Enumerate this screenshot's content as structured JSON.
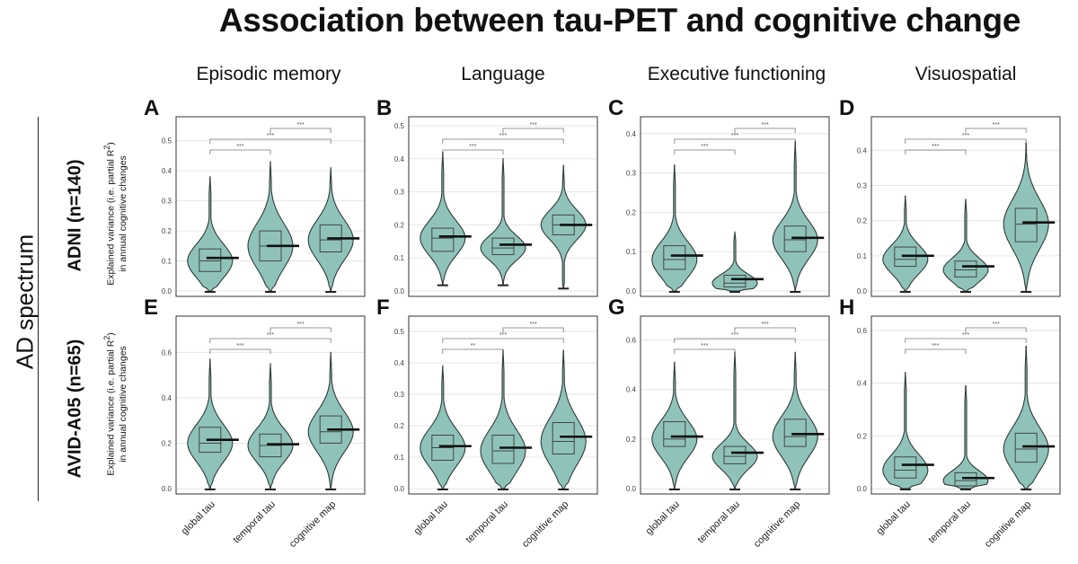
{
  "title": "Association between tau-PET and cognitive change",
  "row_group_label": "AD spectrum",
  "domains": [
    "Episodic memory",
    "Language",
    "Executive functioning",
    "Visuospatial"
  ],
  "cohorts": [
    "ADNI (n=140)",
    "AVID-A05 (n=65)"
  ],
  "ylabel": {
    "line1": "Explained variance (i.e. partial R",
    "sup": "2",
    "line1_end": ")",
    "line2": "in annual cognitive changes"
  },
  "colors": {
    "violin_fill": "#8fc3ba",
    "violin_stroke": "#2f3b38",
    "box_stroke": "#444444",
    "median": "#111111",
    "grid": "#e6e6e6"
  },
  "chart_data": [
    {
      "panel": "A",
      "type": "violin",
      "row": "ADNI (n=140)",
      "column": "Episodic memory",
      "categories": [
        "global tau",
        "temporal tau",
        "cognitive map"
      ],
      "ylim": [
        0,
        0.55
      ],
      "yticks": [
        0,
        0.1,
        0.2,
        0.3,
        0.4,
        0.5
      ],
      "ytick_labels": [
        "0.0",
        "0.1",
        "0.2",
        "0.3",
        "0.4",
        "0.5"
      ],
      "medians": [
        0.1,
        0.15,
        0.17
      ],
      "means": [
        0.11,
        0.15,
        0.175
      ],
      "q1": [
        0.065,
        0.1,
        0.13
      ],
      "q3": [
        0.14,
        0.2,
        0.22
      ],
      "min": [
        0.0,
        0.0,
        0.0
      ],
      "max": [
        0.38,
        0.43,
        0.41
      ],
      "comparisons": [
        {
          "from": "global tau",
          "to": "temporal tau",
          "label": "***"
        },
        {
          "from": "global tau",
          "to": "cognitive map",
          "label": "***"
        },
        {
          "from": "temporal tau",
          "to": "cognitive map",
          "label": "***"
        }
      ]
    },
    {
      "panel": "B",
      "type": "violin",
      "row": "ADNI (n=140)",
      "column": "Language",
      "categories": [
        "global tau",
        "temporal tau",
        "cognitive map"
      ],
      "ylim": [
        0,
        0.5
      ],
      "yticks": [
        0,
        0.1,
        0.2,
        0.3,
        0.4,
        0.5
      ],
      "ytick_labels": [
        "0.0",
        "0.1",
        "0.2",
        "0.3",
        "0.4",
        "0.5"
      ],
      "medians": [
        0.16,
        0.13,
        0.2
      ],
      "means": [
        0.165,
        0.14,
        0.2
      ],
      "q1": [
        0.12,
        0.11,
        0.17
      ],
      "q3": [
        0.19,
        0.16,
        0.23
      ],
      "min": [
        0.02,
        0.02,
        0.01
      ],
      "max": [
        0.42,
        0.4,
        0.38
      ],
      "comparisons": [
        {
          "from": "global tau",
          "to": "temporal tau",
          "label": "***"
        },
        {
          "from": "global tau",
          "to": "cognitive map",
          "label": "***"
        },
        {
          "from": "temporal tau",
          "to": "cognitive map",
          "label": "***"
        }
      ]
    },
    {
      "panel": "C",
      "type": "violin",
      "row": "ADNI (n=140)",
      "column": "Executive functioning",
      "categories": [
        "global tau",
        "temporal tau",
        "cognitive map"
      ],
      "ylim": [
        0,
        0.42
      ],
      "yticks": [
        0,
        0.1,
        0.2,
        0.3,
        0.4
      ],
      "ytick_labels": [
        "0.0",
        "0.1",
        "0.2",
        "0.3",
        "0.4"
      ],
      "medians": [
        0.08,
        0.02,
        0.13
      ],
      "means": [
        0.09,
        0.03,
        0.135
      ],
      "q1": [
        0.055,
        0.01,
        0.1
      ],
      "q3": [
        0.115,
        0.04,
        0.165
      ],
      "min": [
        0.0,
        0.0,
        0.0
      ],
      "max": [
        0.32,
        0.15,
        0.38
      ],
      "comparisons": [
        {
          "from": "global tau",
          "to": "temporal tau",
          "label": "***"
        },
        {
          "from": "global tau",
          "to": "cognitive map",
          "label": "***"
        },
        {
          "from": "temporal tau",
          "to": "cognitive map",
          "label": "***"
        }
      ]
    },
    {
      "panel": "D",
      "type": "violin",
      "row": "ADNI (n=140)",
      "column": "Visuospatial",
      "categories": [
        "global tau",
        "temporal tau",
        "cognitive map"
      ],
      "ylim": [
        0,
        0.47
      ],
      "yticks": [
        0,
        0.1,
        0.2,
        0.3,
        0.4
      ],
      "ytick_labels": [
        "0.0",
        "0.1",
        "0.2",
        "0.3",
        "0.4"
      ],
      "medians": [
        0.09,
        0.06,
        0.19
      ],
      "means": [
        0.1,
        0.07,
        0.195
      ],
      "q1": [
        0.07,
        0.04,
        0.14
      ],
      "q3": [
        0.125,
        0.085,
        0.235
      ],
      "min": [
        0.0,
        0.0,
        0.0
      ],
      "max": [
        0.27,
        0.26,
        0.42
      ],
      "comparisons": [
        {
          "from": "global tau",
          "to": "temporal tau",
          "label": "***"
        },
        {
          "from": "global tau",
          "to": "cognitive map",
          "label": "***"
        },
        {
          "from": "temporal tau",
          "to": "cognitive map",
          "label": "***"
        }
      ]
    },
    {
      "panel": "E",
      "type": "violin",
      "row": "AVID-A05 (n=65)",
      "column": "Episodic memory",
      "categories": [
        "global tau",
        "temporal tau",
        "cognitive map"
      ],
      "ylim": [
        0,
        0.72
      ],
      "yticks": [
        0,
        0.2,
        0.4,
        0.6
      ],
      "ytick_labels": [
        "0.0",
        "0.2",
        "0.4",
        "0.6"
      ],
      "medians": [
        0.2,
        0.19,
        0.25
      ],
      "means": [
        0.215,
        0.195,
        0.26
      ],
      "q1": [
        0.16,
        0.14,
        0.2
      ],
      "q3": [
        0.27,
        0.24,
        0.32
      ],
      "min": [
        0.0,
        0.0,
        0.0
      ],
      "max": [
        0.57,
        0.55,
        0.6
      ],
      "comparisons": [
        {
          "from": "global tau",
          "to": "temporal tau",
          "label": "***"
        },
        {
          "from": "global tau",
          "to": "cognitive map",
          "label": "***"
        },
        {
          "from": "temporal tau",
          "to": "cognitive map",
          "label": "***"
        }
      ]
    },
    {
      "panel": "F",
      "type": "violin",
      "row": "AVID-A05 (n=65)",
      "column": "Language",
      "categories": [
        "global tau",
        "temporal tau",
        "cognitive map"
      ],
      "ylim": [
        0,
        0.52
      ],
      "yticks": [
        0,
        0.1,
        0.2,
        0.3,
        0.4,
        0.5
      ],
      "ytick_labels": [
        "0.0",
        "0.1",
        "0.2",
        "0.3",
        "0.4",
        "0.5"
      ],
      "medians": [
        0.13,
        0.12,
        0.15
      ],
      "means": [
        0.135,
        0.13,
        0.165
      ],
      "q1": [
        0.09,
        0.08,
        0.11
      ],
      "q3": [
        0.17,
        0.17,
        0.21
      ],
      "min": [
        0.0,
        0.0,
        0.0
      ],
      "max": [
        0.39,
        0.44,
        0.44
      ],
      "comparisons": [
        {
          "from": "global tau",
          "to": "temporal tau",
          "label": "**"
        },
        {
          "from": "global tau",
          "to": "cognitive map",
          "label": "***"
        },
        {
          "from": "temporal tau",
          "to": "cognitive map",
          "label": "***"
        }
      ]
    },
    {
      "panel": "G",
      "type": "violin",
      "row": "AVID-A05 (n=65)",
      "column": "Executive functioning",
      "categories": [
        "global tau",
        "temporal tau",
        "cognitive map"
      ],
      "ylim": [
        0,
        0.66
      ],
      "yticks": [
        0,
        0.2,
        0.4,
        0.6
      ],
      "ytick_labels": [
        "0.0",
        "0.2",
        "0.4",
        "0.6"
      ],
      "medians": [
        0.2,
        0.13,
        0.21
      ],
      "means": [
        0.21,
        0.145,
        0.22
      ],
      "q1": [
        0.17,
        0.1,
        0.17
      ],
      "q3": [
        0.27,
        0.17,
        0.28
      ],
      "min": [
        0.0,
        0.0,
        0.0
      ],
      "max": [
        0.51,
        0.55,
        0.55
      ],
      "comparisons": [
        {
          "from": "global tau",
          "to": "temporal tau",
          "label": "***"
        },
        {
          "from": "global tau",
          "to": "cognitive map",
          "label": "***"
        },
        {
          "from": "temporal tau",
          "to": "cognitive map",
          "label": "***"
        }
      ]
    },
    {
      "panel": "H",
      "type": "violin",
      "row": "AVID-A05 (n=65)",
      "column": "Visuospatial",
      "categories": [
        "global tau",
        "temporal tau",
        "cognitive map"
      ],
      "ylim": [
        0,
        0.62
      ],
      "yticks": [
        0,
        0.2,
        0.4,
        0.6
      ],
      "ytick_labels": [
        "0.0",
        "0.2",
        "0.4",
        "0.6"
      ],
      "medians": [
        0.07,
        0.03,
        0.15
      ],
      "means": [
        0.09,
        0.04,
        0.16
      ],
      "q1": [
        0.04,
        0.01,
        0.1
      ],
      "q3": [
        0.12,
        0.06,
        0.21
      ],
      "min": [
        0.0,
        0.0,
        0.0
      ],
      "max": [
        0.44,
        0.39,
        0.54
      ],
      "comparisons": [
        {
          "from": "global tau",
          "to": "temporal tau",
          "label": "***"
        },
        {
          "from": "global tau",
          "to": "cognitive map",
          "label": "***"
        },
        {
          "from": "temporal tau",
          "to": "cognitive map",
          "label": "***"
        }
      ]
    }
  ]
}
